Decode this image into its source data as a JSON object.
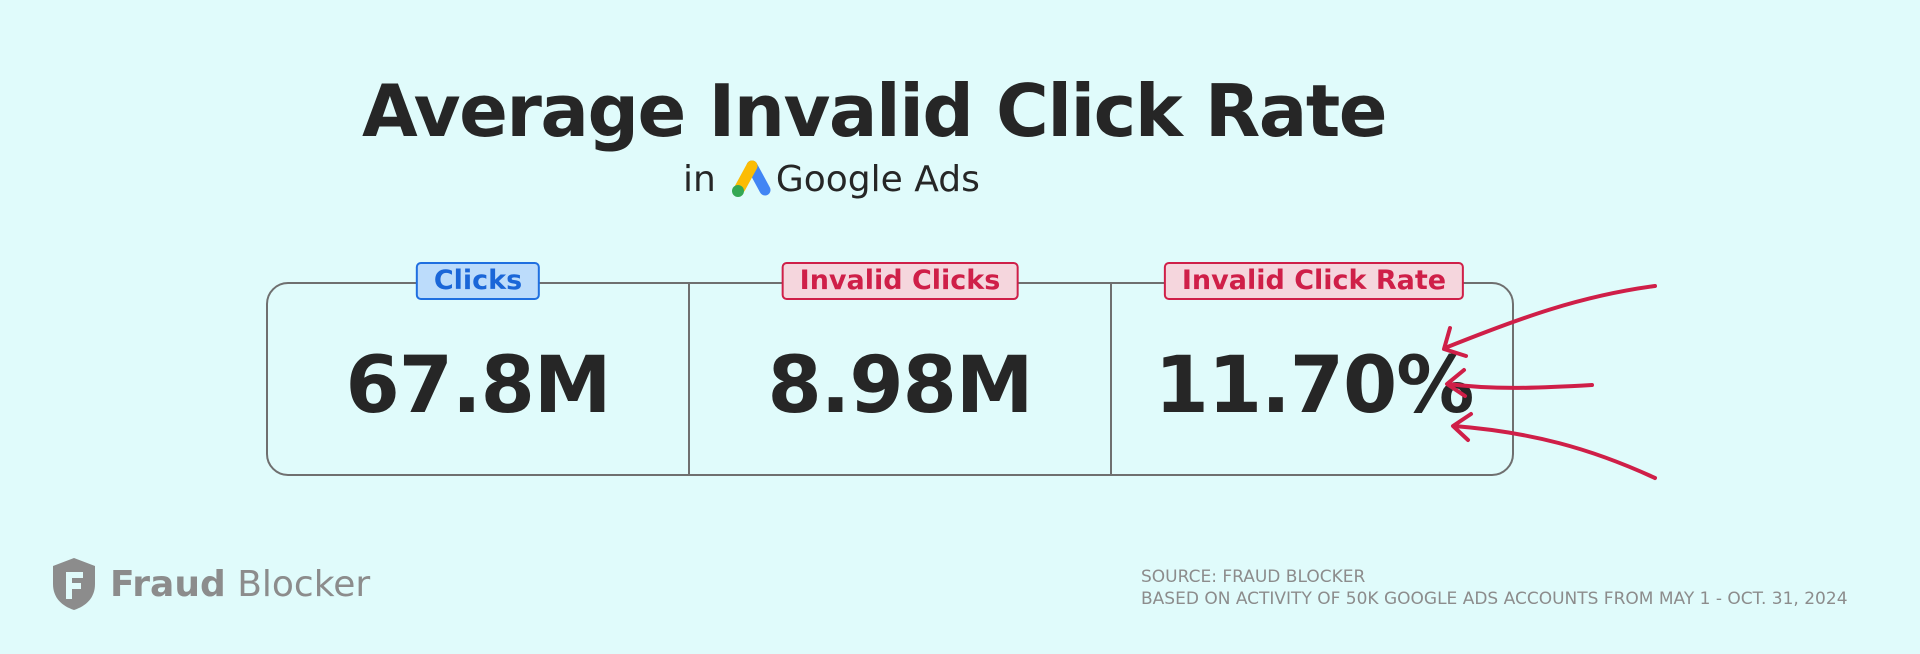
{
  "header": {
    "title": "Average Invalid Click Rate",
    "subtitle_prefix": "in",
    "platform_name": "Google Ads",
    "platform_icon": "google-ads-logo-icon"
  },
  "stats": [
    {
      "label": "Clicks",
      "value": "67.8M",
      "color": "#1a66d8"
    },
    {
      "label": "Invalid Clicks",
      "value": "8.98M",
      "color": "#cf1f48"
    },
    {
      "label": "Invalid Click Rate",
      "value": "11.70%",
      "color": "#cf1f48"
    }
  ],
  "decor": {
    "arrow_color": "#cf1f48",
    "arrow_icon": "pointing-arrows-icon"
  },
  "brand": {
    "name_part1": "Fraud",
    "name_part2": "Blocker",
    "icon": "shield-logo-icon",
    "color": "#8c8c8c"
  },
  "footer": {
    "source_line": "SOURCE: FRAUD BLOCKER",
    "basis_line": "BASED ON ACTIVITY OF 50K GOOGLE ADS ACCOUNTS FROM MAY 1 - OCT. 31, 2024"
  }
}
